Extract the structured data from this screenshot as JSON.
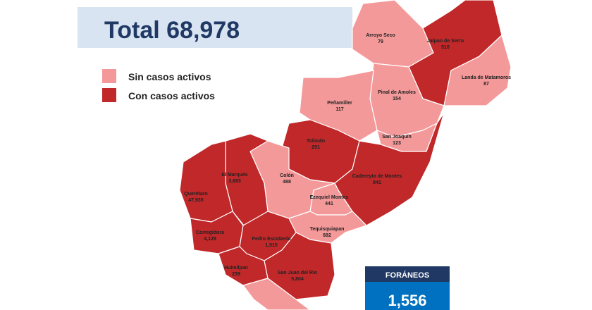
{
  "header": {
    "title": "Total 68,978"
  },
  "legend": {
    "items": [
      "Sin casos activos",
      "Con casos activos"
    ]
  },
  "municipalities": [
    {
      "name": "Arroyo Seco",
      "count": "79"
    },
    {
      "name": "Jalpan de Serra",
      "count": "516"
    },
    {
      "name": "Landa de Matamoros",
      "count": "87"
    },
    {
      "name": "Pinal de Amoles",
      "count": "154"
    },
    {
      "name": "Peñamiller",
      "count": "117"
    },
    {
      "name": "San Joaquín",
      "count": "123"
    },
    {
      "name": "Tolimán",
      "count": "291"
    },
    {
      "name": "Cadereyta de Montes",
      "count": "841"
    },
    {
      "name": "Colón",
      "count": "488"
    },
    {
      "name": "El Marqués",
      "count": "3,683"
    },
    {
      "name": "Querétaro",
      "count": "47,935"
    },
    {
      "name": "Ezequiel Montes",
      "count": "441"
    },
    {
      "name": "Tequisquiapan",
      "count": "682"
    },
    {
      "name": "Corregidora",
      "count": "4,128"
    },
    {
      "name": "Pedro Escobedo",
      "count": "1,515"
    },
    {
      "name": "Huimilpan",
      "count": "239"
    },
    {
      "name": "San Juan del Río",
      "count": "5,804"
    }
  ],
  "foraneos": {
    "label": "FORÁNEOS",
    "value": "1,556"
  }
}
